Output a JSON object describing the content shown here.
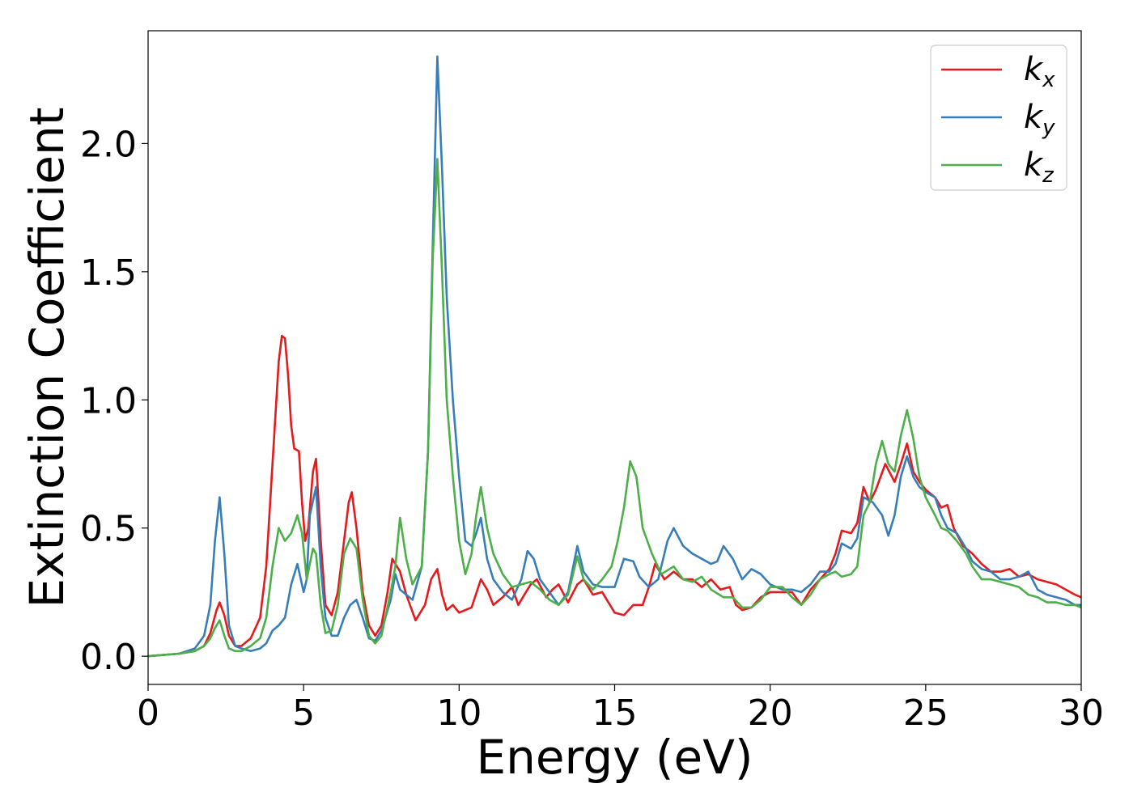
{
  "chart_data": {
    "type": "line",
    "title": "",
    "xlabel": "Energy (eV)",
    "ylabel": "Extinction Coefficient",
    "xlim": [
      0,
      30
    ],
    "ylim": [
      -0.11,
      2.44
    ],
    "xticks": [
      0,
      5,
      10,
      15,
      20,
      25,
      30
    ],
    "xtick_labels": [
      "0",
      "5",
      "10",
      "15",
      "20",
      "25",
      "30"
    ],
    "yticks": [
      0.0,
      0.5,
      1.0,
      1.5,
      2.0
    ],
    "ytick_labels": [
      "0.0",
      "0.5",
      "1.0",
      "1.5",
      "2.0"
    ],
    "grid": false,
    "legend_position": "top-right",
    "series": [
      {
        "name": "k",
        "subscript": "x",
        "color": "#e41a1c",
        "x": [
          0,
          1,
          1.5,
          1.8,
          2.0,
          2.2,
          2.3,
          2.45,
          2.6,
          2.8,
          3.0,
          3.3,
          3.6,
          3.8,
          4.0,
          4.2,
          4.3,
          4.4,
          4.5,
          4.6,
          4.7,
          4.85,
          4.95,
          5.05,
          5.15,
          5.3,
          5.4,
          5.55,
          5.7,
          5.9,
          6.1,
          6.3,
          6.45,
          6.55,
          6.7,
          6.9,
          7.1,
          7.3,
          7.5,
          7.7,
          7.85,
          8.0,
          8.1,
          8.3,
          8.6,
          8.9,
          9.1,
          9.3,
          9.45,
          9.6,
          9.8,
          10.0,
          10.2,
          10.4,
          10.7,
          10.9,
          11.1,
          11.4,
          11.7,
          11.9,
          12.1,
          12.3,
          12.5,
          12.8,
          13.0,
          13.2,
          13.5,
          13.8,
          14.0,
          14.3,
          14.6,
          15.0,
          15.3,
          15.6,
          15.9,
          16.1,
          16.3,
          16.6,
          16.9,
          17.2,
          17.5,
          17.8,
          18.1,
          18.4,
          18.7,
          18.9,
          19.1,
          19.4,
          19.7,
          20.0,
          20.4,
          20.7,
          21.0,
          21.3,
          21.6,
          21.9,
          22.1,
          22.3,
          22.6,
          22.8,
          23.0,
          23.2,
          23.4,
          23.7,
          24.0,
          24.2,
          24.4,
          24.6,
          24.8,
          25.0,
          25.3,
          25.5,
          25.7,
          25.9,
          26.2,
          26.5,
          26.8,
          27.1,
          27.4,
          27.7,
          28.0,
          28.3,
          28.6,
          28.9,
          29.2,
          29.5,
          29.8,
          30.0
        ],
        "y": [
          0.0,
          0.01,
          0.02,
          0.04,
          0.09,
          0.18,
          0.21,
          0.16,
          0.08,
          0.04,
          0.04,
          0.07,
          0.15,
          0.35,
          0.75,
          1.15,
          1.25,
          1.24,
          1.1,
          0.9,
          0.81,
          0.8,
          0.6,
          0.45,
          0.5,
          0.72,
          0.77,
          0.45,
          0.2,
          0.16,
          0.25,
          0.45,
          0.6,
          0.64,
          0.5,
          0.25,
          0.12,
          0.08,
          0.12,
          0.25,
          0.38,
          0.35,
          0.33,
          0.24,
          0.14,
          0.2,
          0.3,
          0.34,
          0.24,
          0.18,
          0.2,
          0.17,
          0.18,
          0.19,
          0.3,
          0.26,
          0.2,
          0.23,
          0.27,
          0.2,
          0.24,
          0.28,
          0.3,
          0.23,
          0.26,
          0.28,
          0.21,
          0.28,
          0.3,
          0.24,
          0.25,
          0.17,
          0.16,
          0.2,
          0.2,
          0.27,
          0.36,
          0.3,
          0.33,
          0.3,
          0.3,
          0.27,
          0.3,
          0.26,
          0.27,
          0.2,
          0.18,
          0.19,
          0.23,
          0.25,
          0.25,
          0.25,
          0.2,
          0.26,
          0.3,
          0.34,
          0.4,
          0.49,
          0.48,
          0.52,
          0.66,
          0.6,
          0.65,
          0.75,
          0.68,
          0.75,
          0.83,
          0.72,
          0.68,
          0.65,
          0.62,
          0.58,
          0.59,
          0.5,
          0.43,
          0.4,
          0.36,
          0.33,
          0.33,
          0.34,
          0.31,
          0.32,
          0.3,
          0.29,
          0.28,
          0.26,
          0.24,
          0.23
        ]
      },
      {
        "name": "k",
        "subscript": "y",
        "color": "#377eb8",
        "x": [
          0,
          1,
          1.5,
          1.8,
          2.0,
          2.15,
          2.3,
          2.45,
          2.6,
          2.8,
          3.0,
          3.3,
          3.6,
          3.8,
          4.0,
          4.2,
          4.4,
          4.6,
          4.8,
          5.0,
          5.1,
          5.2,
          5.4,
          5.55,
          5.7,
          5.9,
          6.1,
          6.3,
          6.5,
          6.7,
          6.9,
          7.1,
          7.3,
          7.5,
          7.8,
          7.95,
          8.1,
          8.3,
          8.5,
          8.8,
          9.0,
          9.15,
          9.3,
          9.45,
          9.6,
          9.8,
          10.0,
          10.2,
          10.4,
          10.55,
          10.7,
          10.9,
          11.1,
          11.4,
          11.7,
          12.0,
          12.2,
          12.4,
          12.6,
          12.9,
          13.2,
          13.5,
          13.8,
          14.0,
          14.3,
          14.6,
          15.0,
          15.3,
          15.6,
          15.8,
          16.1,
          16.4,
          16.7,
          16.9,
          17.2,
          17.5,
          17.8,
          18.1,
          18.3,
          18.5,
          18.8,
          19.1,
          19.4,
          19.7,
          20.0,
          20.4,
          20.7,
          21.0,
          21.3,
          21.6,
          21.9,
          22.1,
          22.3,
          22.6,
          22.8,
          23.0,
          23.3,
          23.6,
          23.8,
          24.0,
          24.2,
          24.4,
          24.6,
          24.8,
          25.0,
          25.3,
          25.5,
          25.7,
          26.0,
          26.3,
          26.5,
          26.8,
          27.1,
          27.4,
          27.7,
          28.0,
          28.3,
          28.6,
          28.9,
          29.2,
          29.5,
          29.8,
          30.0
        ],
        "y": [
          0.0,
          0.01,
          0.03,
          0.08,
          0.2,
          0.45,
          0.62,
          0.4,
          0.12,
          0.04,
          0.03,
          0.02,
          0.03,
          0.05,
          0.1,
          0.12,
          0.15,
          0.28,
          0.36,
          0.25,
          0.3,
          0.55,
          0.66,
          0.35,
          0.15,
          0.08,
          0.08,
          0.15,
          0.2,
          0.22,
          0.15,
          0.07,
          0.06,
          0.1,
          0.22,
          0.32,
          0.26,
          0.24,
          0.22,
          0.35,
          0.8,
          1.6,
          2.34,
          1.9,
          1.4,
          1.0,
          0.7,
          0.45,
          0.43,
          0.48,
          0.54,
          0.38,
          0.3,
          0.25,
          0.22,
          0.3,
          0.41,
          0.38,
          0.3,
          0.25,
          0.2,
          0.25,
          0.43,
          0.33,
          0.28,
          0.27,
          0.27,
          0.38,
          0.37,
          0.31,
          0.27,
          0.3,
          0.45,
          0.5,
          0.43,
          0.4,
          0.38,
          0.36,
          0.37,
          0.43,
          0.38,
          0.3,
          0.34,
          0.32,
          0.28,
          0.26,
          0.26,
          0.25,
          0.28,
          0.33,
          0.33,
          0.36,
          0.44,
          0.42,
          0.46,
          0.62,
          0.6,
          0.55,
          0.47,
          0.55,
          0.7,
          0.78,
          0.7,
          0.66,
          0.64,
          0.62,
          0.55,
          0.5,
          0.48,
          0.42,
          0.37,
          0.34,
          0.33,
          0.3,
          0.3,
          0.31,
          0.33,
          0.26,
          0.24,
          0.23,
          0.22,
          0.2,
          0.2
        ]
      },
      {
        "name": "k",
        "subscript": "z",
        "color": "#4daf4a",
        "x": [
          0,
          1,
          1.5,
          1.8,
          2.0,
          2.15,
          2.3,
          2.45,
          2.6,
          2.8,
          3.0,
          3.3,
          3.6,
          3.8,
          4.0,
          4.2,
          4.4,
          4.6,
          4.8,
          4.95,
          5.1,
          5.3,
          5.4,
          5.55,
          5.7,
          5.9,
          6.1,
          6.3,
          6.5,
          6.7,
          6.9,
          7.1,
          7.3,
          7.5,
          7.8,
          7.95,
          8.1,
          8.3,
          8.5,
          8.8,
          9.0,
          9.15,
          9.3,
          9.45,
          9.6,
          9.8,
          10.0,
          10.2,
          10.4,
          10.55,
          10.7,
          10.9,
          11.1,
          11.4,
          11.7,
          12.0,
          12.3,
          12.6,
          12.9,
          13.2,
          13.5,
          13.8,
          14.0,
          14.3,
          14.6,
          14.9,
          15.1,
          15.3,
          15.5,
          15.7,
          15.9,
          16.2,
          16.5,
          16.9,
          17.2,
          17.5,
          17.8,
          18.1,
          18.5,
          18.8,
          19.1,
          19.4,
          19.7,
          20.0,
          20.4,
          20.7,
          21.0,
          21.3,
          21.6,
          21.9,
          22.1,
          22.3,
          22.6,
          22.8,
          23.0,
          23.2,
          23.4,
          23.6,
          23.8,
          24.0,
          24.2,
          24.4,
          24.6,
          24.8,
          25.0,
          25.3,
          25.5,
          25.7,
          26.0,
          26.3,
          26.5,
          26.8,
          27.1,
          27.4,
          27.7,
          28.0,
          28.3,
          28.6,
          28.9,
          29.2,
          29.5,
          29.8,
          30.0
        ],
        "y": [
          0.0,
          0.01,
          0.02,
          0.04,
          0.07,
          0.11,
          0.14,
          0.08,
          0.03,
          0.02,
          0.02,
          0.04,
          0.07,
          0.15,
          0.35,
          0.5,
          0.45,
          0.48,
          0.55,
          0.48,
          0.3,
          0.42,
          0.4,
          0.2,
          0.09,
          0.1,
          0.2,
          0.4,
          0.46,
          0.42,
          0.22,
          0.08,
          0.05,
          0.08,
          0.25,
          0.35,
          0.54,
          0.38,
          0.28,
          0.35,
          0.8,
          1.55,
          1.94,
          1.5,
          1.0,
          0.7,
          0.45,
          0.32,
          0.4,
          0.55,
          0.66,
          0.5,
          0.4,
          0.32,
          0.27,
          0.28,
          0.29,
          0.26,
          0.22,
          0.2,
          0.24,
          0.39,
          0.3,
          0.26,
          0.3,
          0.35,
          0.45,
          0.58,
          0.76,
          0.7,
          0.5,
          0.4,
          0.32,
          0.35,
          0.3,
          0.29,
          0.31,
          0.26,
          0.23,
          0.23,
          0.19,
          0.19,
          0.22,
          0.27,
          0.27,
          0.23,
          0.2,
          0.24,
          0.3,
          0.32,
          0.33,
          0.31,
          0.32,
          0.35,
          0.55,
          0.6,
          0.75,
          0.84,
          0.75,
          0.72,
          0.86,
          0.96,
          0.85,
          0.7,
          0.62,
          0.55,
          0.5,
          0.49,
          0.45,
          0.4,
          0.35,
          0.3,
          0.3,
          0.29,
          0.28,
          0.27,
          0.24,
          0.23,
          0.21,
          0.21,
          0.2,
          0.2,
          0.19
        ]
      }
    ]
  }
}
